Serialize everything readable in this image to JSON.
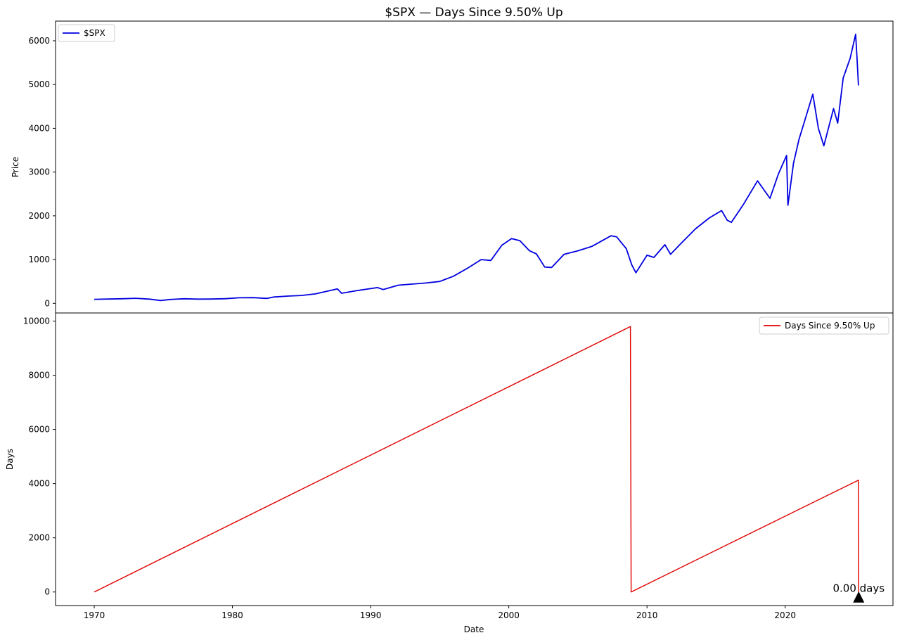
{
  "chart_data": {
    "title": "$SPX — Days Since 9.50% Up",
    "xlabel": "Date",
    "x_ticks": [
      "1970",
      "1980",
      "1990",
      "2000",
      "2010",
      "2020"
    ],
    "x_tick_values": [
      1970,
      1980,
      1990,
      2000,
      2010,
      2020
    ],
    "xlim": [
      1967.2,
      2027.8
    ],
    "panels": [
      {
        "type": "line",
        "ylabel": "Price",
        "ylim": [
          -220,
          6450
        ],
        "y_ticks": [
          0,
          1000,
          2000,
          3000,
          4000,
          5000,
          6000
        ],
        "legend_position": "top-left",
        "series": [
          {
            "name": "$SPX",
            "color": "#0000e0",
            "points": [
              [
                1970.0,
                92
              ],
              [
                1971.0,
                98
              ],
              [
                1972.0,
                105
              ],
              [
                1973.0,
                116
              ],
              [
                1974.0,
                97
              ],
              [
                1974.8,
                65
              ],
              [
                1975.5,
                88
              ],
              [
                1976.5,
                105
              ],
              [
                1977.5,
                96
              ],
              [
                1978.5,
                98
              ],
              [
                1979.5,
                106
              ],
              [
                1980.5,
                127
              ],
              [
                1981.5,
                130
              ],
              [
                1982.5,
                112
              ],
              [
                1983.0,
                145
              ],
              [
                1984.0,
                165
              ],
              [
                1985.0,
                180
              ],
              [
                1986.0,
                215
              ],
              [
                1987.6,
                330
              ],
              [
                1987.9,
                230
              ],
              [
                1989.0,
                290
              ],
              [
                1990.5,
                360
              ],
              [
                1990.9,
                315
              ],
              [
                1992.0,
                415
              ],
              [
                1994.0,
                465
              ],
              [
                1995.0,
                500
              ],
              [
                1996.0,
                620
              ],
              [
                1997.0,
                800
              ],
              [
                1998.0,
                1000
              ],
              [
                1998.7,
                980
              ],
              [
                1999.5,
                1330
              ],
              [
                2000.2,
                1480
              ],
              [
                2000.8,
                1430
              ],
              [
                2001.5,
                1200
              ],
              [
                2002.0,
                1130
              ],
              [
                2002.6,
                830
              ],
              [
                2003.1,
                820
              ],
              [
                2004.0,
                1120
              ],
              [
                2005.0,
                1200
              ],
              [
                2006.0,
                1300
              ],
              [
                2007.4,
                1545
              ],
              [
                2007.8,
                1520
              ],
              [
                2008.5,
                1250
              ],
              [
                2008.9,
                880
              ],
              [
                2009.2,
                700
              ],
              [
                2010.0,
                1100
              ],
              [
                2010.5,
                1050
              ],
              [
                2011.3,
                1340
              ],
              [
                2011.7,
                1120
              ],
              [
                2012.5,
                1380
              ],
              [
                2013.5,
                1700
              ],
              [
                2014.5,
                1950
              ],
              [
                2015.4,
                2120
              ],
              [
                2015.8,
                1900
              ],
              [
                2016.1,
                1850
              ],
              [
                2017.0,
                2270
              ],
              [
                2018.0,
                2800
              ],
              [
                2018.9,
                2400
              ],
              [
                2019.5,
                2950
              ],
              [
                2020.1,
                3380
              ],
              [
                2020.2,
                2240
              ],
              [
                2020.6,
                3200
              ],
              [
                2021.0,
                3750
              ],
              [
                2022.0,
                4780
              ],
              [
                2022.4,
                4000
              ],
              [
                2022.8,
                3600
              ],
              [
                2023.5,
                4450
              ],
              [
                2023.8,
                4120
              ],
              [
                2024.2,
                5150
              ],
              [
                2024.7,
                5600
              ],
              [
                2025.1,
                6150
              ],
              [
                2025.2,
                5600
              ],
              [
                2025.3,
                4980
              ]
            ]
          }
        ]
      },
      {
        "type": "line",
        "ylabel": "Days",
        "ylim": [
          -500,
          10300
        ],
        "y_ticks": [
          0,
          2000,
          4000,
          6000,
          8000,
          10000
        ],
        "legend_position": "top-right",
        "series": [
          {
            "name": "Days Since 9.50% Up",
            "color": "#e00000",
            "points": [
              [
                1970.0,
                0
              ],
              [
                2008.8,
                9800
              ],
              [
                2008.85,
                0
              ],
              [
                2025.3,
                4130
              ],
              [
                2025.32,
                0
              ]
            ]
          }
        ],
        "annotation": {
          "text": "0.00 days",
          "x": 2025.32,
          "y": 0
        }
      }
    ]
  }
}
